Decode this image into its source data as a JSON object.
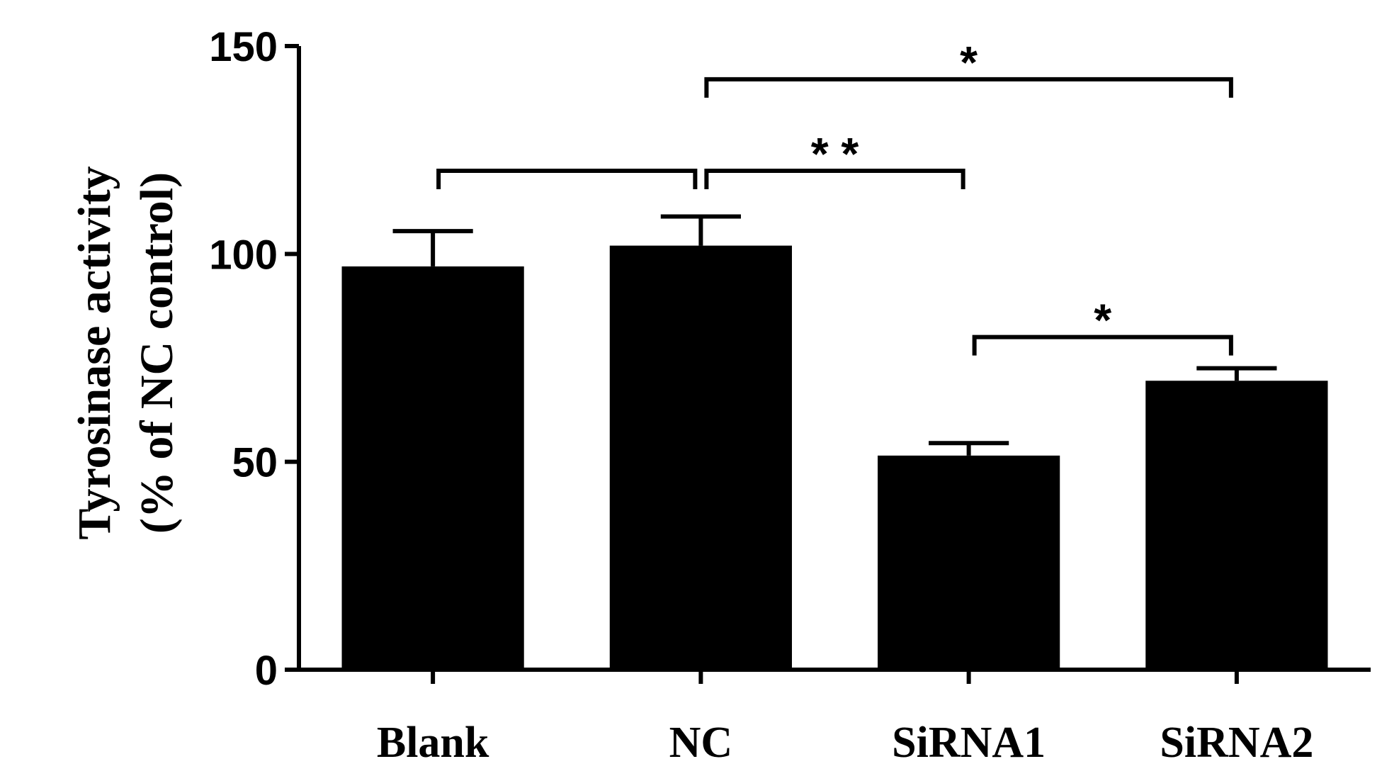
{
  "chart_data": {
    "type": "bar",
    "ylabel_lines": [
      "Tyrosinase activity",
      "(% of NC control)"
    ],
    "categories": [
      "Blank",
      "NC",
      "SiRNA1",
      "SiRNA2"
    ],
    "values": [
      97,
      102,
      51.5,
      69.5
    ],
    "errors": [
      8.5,
      7,
      3,
      3
    ],
    "ylim": [
      0,
      150
    ],
    "yticks": [
      "0",
      "50",
      "100",
      "150"
    ],
    "grid": false,
    "bar_color": "#000000",
    "significance": [
      {
        "from": "Blank",
        "to": "NC",
        "label": "",
        "level": 120
      },
      {
        "from": "NC",
        "to": "SiRNA1",
        "label": "* *",
        "level": 120
      },
      {
        "from": "NC",
        "to": "SiRNA2",
        "label": "*",
        "level": 142
      },
      {
        "from": "SiRNA1",
        "to": "SiRNA2",
        "label": "*",
        "level": 80
      }
    ]
  }
}
